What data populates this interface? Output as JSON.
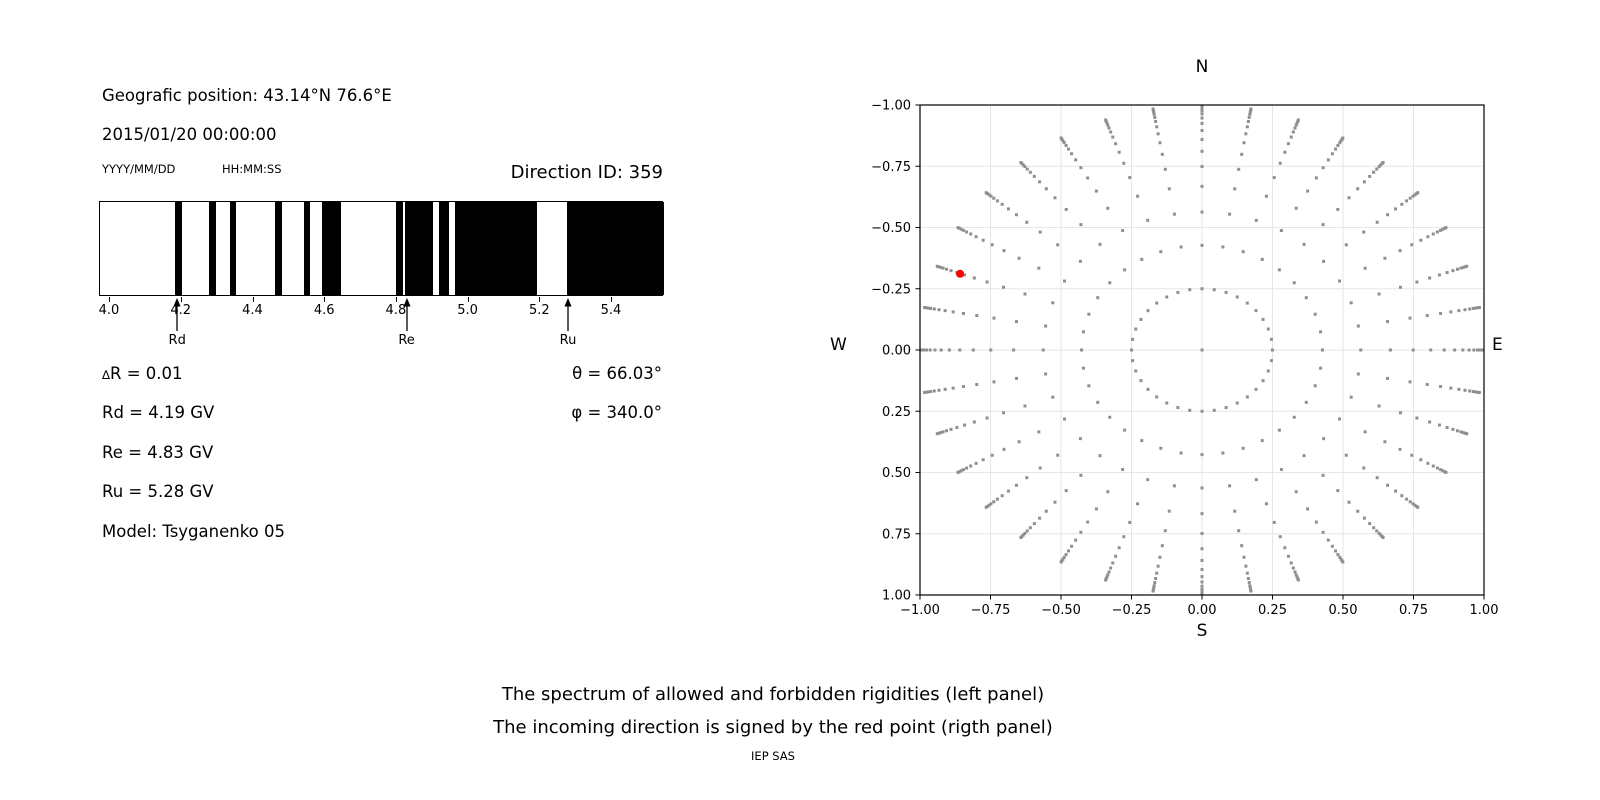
{
  "header": {
    "geographic_position": "Geografic position: 43.14°N 76.6°E",
    "datetime": "2015/01/20 00:00:00",
    "date_format_label": "YYYY/MM/DD",
    "time_format_label": "HH:MM:SS",
    "direction_id": "Direction ID: 359"
  },
  "stats": {
    "delta_symbol": "∆",
    "delta_rest": "R = 0.01",
    "rd": "Rd = 4.19 GV",
    "re": "Re = 4.83 GV",
    "ru": "Ru = 5.28 GV",
    "model": "Model: Tsyganenko 05",
    "theta": "θ = 66.03°",
    "phi": "φ = 340.0°"
  },
  "captions": {
    "line1": "The spectrum of allowed and forbidden rigidities (left panel)",
    "line2": "The incoming direction is signed by the red point (rigth panel)",
    "credit": "IEP SAS"
  },
  "colors": {
    "band": "#000000",
    "dot": "#8f8f8f",
    "red_point": "#ff0000",
    "grid": "#e6e6e6",
    "axis": "#000000"
  },
  "chart_data": [
    {
      "type": "bar",
      "name": "rigidity-spectrum-barcode",
      "xlim": [
        3.972,
        5.545
      ],
      "xticks": [
        4.0,
        4.2,
        4.4,
        4.6,
        4.8,
        5.0,
        5.2,
        5.4
      ],
      "xtick_labels": [
        "4.0",
        "4.2",
        "4.4",
        "4.6",
        "4.8",
        "5.0",
        "5.2",
        "5.4"
      ],
      "allowed_bands_gv": [
        [
          4.18,
          4.2
        ],
        [
          4.275,
          4.295
        ],
        [
          4.335,
          4.352
        ],
        [
          4.46,
          4.478
        ],
        [
          4.54,
          4.558
        ],
        [
          4.592,
          4.645
        ],
        [
          4.797,
          4.818
        ],
        [
          4.823,
          4.9
        ],
        [
          4.918,
          4.945
        ],
        [
          4.963,
          5.19
        ],
        [
          5.275,
          5.545
        ]
      ],
      "cutoff_arrows": [
        {
          "label": "Rd",
          "value": 4.19
        },
        {
          "label": "Re",
          "value": 4.83
        },
        {
          "label": "Ru",
          "value": 5.28
        }
      ]
    },
    {
      "type": "scatter",
      "name": "incoming-direction-map",
      "xlim": [
        -1.0,
        1.0
      ],
      "ylim": [
        -1.0,
        1.0
      ],
      "xticks": [
        -1.0,
        -0.75,
        -0.5,
        -0.25,
        0.0,
        0.25,
        0.5,
        0.75,
        1.0
      ],
      "xtick_labels": [
        "−1.00",
        "−0.75",
        "−0.50",
        "−0.25",
        "0.00",
        "0.25",
        "0.50",
        "0.75",
        "1.00"
      ],
      "ytick_labels": [
        "1.00",
        "0.75",
        "0.50",
        "0.25",
        "0.00",
        "−0.25",
        "−0.50",
        "−0.75",
        "−1.00"
      ],
      "grid": true,
      "compass": {
        "north": "N",
        "east": "E",
        "south": "S",
        "west": "W"
      },
      "spokes": {
        "azimuth_start_deg": 0,
        "azimuth_step_deg": 10,
        "count": 36,
        "dot_radii": [
          0.25,
          0.427,
          0.563,
          0.668,
          0.749,
          0.811,
          0.859,
          0.896,
          0.925,
          0.947,
          0.964,
          0.977,
          0.986,
          0.994,
          0.999
        ]
      },
      "center_dot": [
        0.0,
        0.0
      ],
      "red_point": {
        "x": -0.858,
        "y": 0.311
      }
    }
  ]
}
